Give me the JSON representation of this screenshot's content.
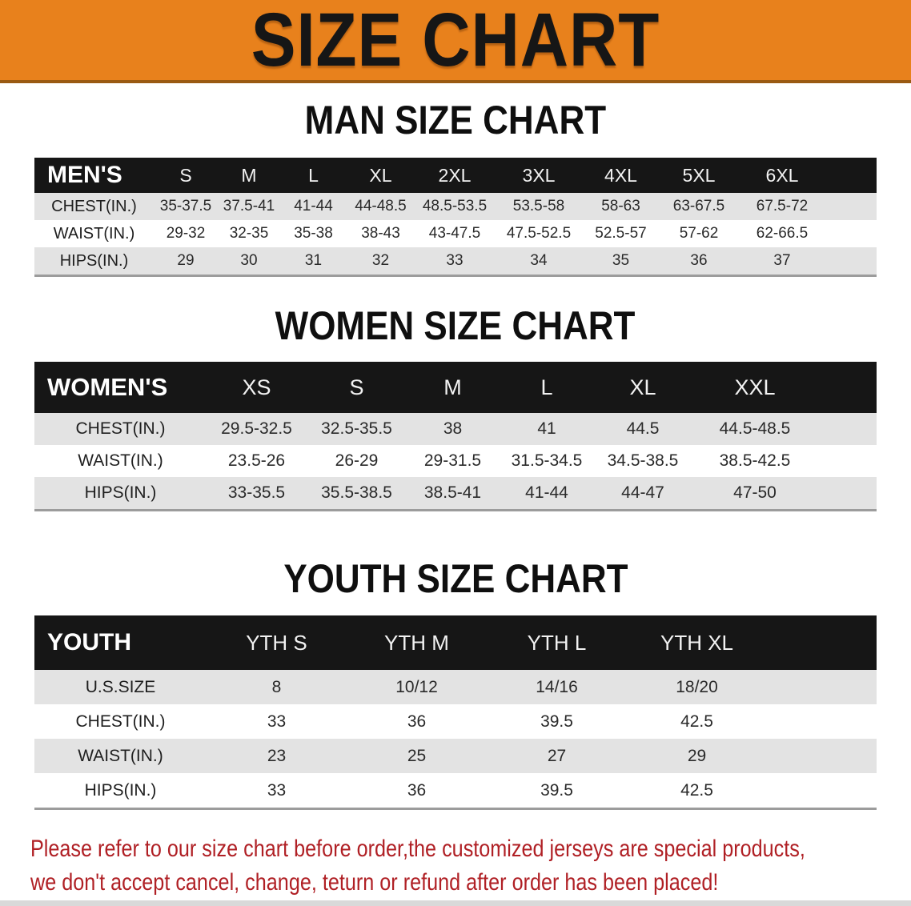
{
  "banner": {
    "title": "SIZE CHART"
  },
  "sections": [
    {
      "heading": "MAN SIZE CHART",
      "table": {
        "label": "MEN'S",
        "columns": [
          "S",
          "M",
          "L",
          "XL",
          "2XL",
          "3XL",
          "4XL",
          "5XL",
          "6XL"
        ],
        "rows": [
          {
            "label": "CHEST(IN.)",
            "values": [
              "35-37.5",
              "37.5-41",
              "41-44",
              "44-48.5",
              "48.5-53.5",
              "53.5-58",
              "58-63",
              "63-67.5",
              "67.5-72"
            ]
          },
          {
            "label": "WAIST(IN.)",
            "values": [
              "29-32",
              "32-35",
              "35-38",
              "38-43",
              "43-47.5",
              "47.5-52.5",
              "52.5-57",
              "57-62",
              "62-66.5"
            ]
          },
          {
            "label": "HIPS(IN.)",
            "values": [
              "29",
              "30",
              "31",
              "32",
              "33",
              "34",
              "35",
              "36",
              "37"
            ]
          }
        ]
      }
    },
    {
      "heading": "WOMEN SIZE CHART",
      "table": {
        "label": "WOMEN'S",
        "columns": [
          "XS",
          "S",
          "M",
          "L",
          "XL",
          "XXL"
        ],
        "rows": [
          {
            "label": "CHEST(IN.)",
            "values": [
              "29.5-32.5",
              "32.5-35.5",
              "38",
              "41",
              "44.5",
              "44.5-48.5"
            ]
          },
          {
            "label": "WAIST(IN.)",
            "values": [
              "23.5-26",
              "26-29",
              "29-31.5",
              "31.5-34.5",
              "34.5-38.5",
              "38.5-42.5"
            ]
          },
          {
            "label": "HIPS(IN.)",
            "values": [
              "33-35.5",
              "35.5-38.5",
              "38.5-41",
              "41-44",
              "44-47",
              "47-50"
            ]
          }
        ]
      }
    },
    {
      "heading": "YOUTH SIZE CHART",
      "table": {
        "label": "YOUTH",
        "columns": [
          "YTH S",
          "YTH M",
          "YTH L",
          "YTH XL"
        ],
        "rows": [
          {
            "label": "U.S.SIZE",
            "values": [
              "8",
              "10/12",
              "14/16",
              "18/20"
            ]
          },
          {
            "label": "CHEST(IN.)",
            "values": [
              "33",
              "36",
              "39.5",
              "42.5"
            ]
          },
          {
            "label": "WAIST(IN.)",
            "values": [
              "23",
              "25",
              "27",
              "29"
            ]
          },
          {
            "label": "HIPS(IN.)",
            "values": [
              "33",
              "36",
              "39.5",
              "42.5"
            ]
          }
        ]
      }
    }
  ],
  "disclaimer": {
    "line1": "Please refer to our size chart before order,the customized jerseys are special products,",
    "line2": "we don't accept cancel, change, teturn or refund after order has been placed!"
  },
  "colors": {
    "banner_bg": "#E8811C",
    "banner_text": "#161616",
    "header_bar": "#161616",
    "row_stripe": "#E3E3E3",
    "table_border": "#9C9C9C",
    "disclaimer_red": "#B02025",
    "bottom_strip": "#D9D9D9"
  }
}
